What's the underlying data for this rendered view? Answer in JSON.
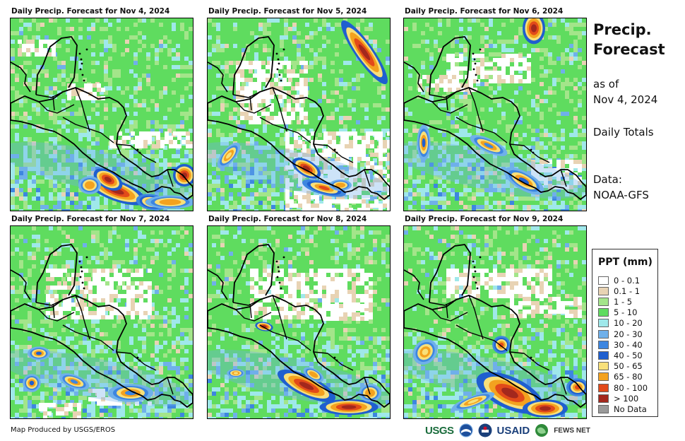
{
  "panels": [
    {
      "title": "Daily Precip. Forecast for Nov 4, 2024"
    },
    {
      "title": "Daily Precip. Forecast for Nov 5, 2024"
    },
    {
      "title": "Daily Precip. Forecast for Nov 6, 2024"
    },
    {
      "title": "Daily Precip. Forecast for Nov 7, 2024"
    },
    {
      "title": "Daily Precip. Forecast for Nov 8, 2024"
    },
    {
      "title": "Daily Precip. Forecast for Nov 9, 2024"
    }
  ],
  "side": {
    "title_line1": "Precip.",
    "title_line2": "Forecast",
    "asof_label": "as of",
    "asof_date": "Nov 4, 2024",
    "totals": "Daily Totals",
    "data_label": "Data:",
    "data_source": "NOAA-GFS"
  },
  "legend": {
    "title": "PPT (mm)",
    "items": [
      {
        "label": "0 - 0.1",
        "color": "#ffffff"
      },
      {
        "label": "0.1 - 1",
        "color": "#e8d3b4"
      },
      {
        "label": "1 - 5",
        "color": "#a3e58a"
      },
      {
        "label": "5 - 10",
        "color": "#5fdc5f"
      },
      {
        "label": "10 - 20",
        "color": "#9fe8ea"
      },
      {
        "label": "20 - 30",
        "color": "#6fb0ea"
      },
      {
        "label": "30 - 40",
        "color": "#3d86e0"
      },
      {
        "label": "40 - 50",
        "color": "#1f5fcf"
      },
      {
        "label": "50 - 65",
        "color": "#f8e07a"
      },
      {
        "label": "65 - 80",
        "color": "#f3a21f"
      },
      {
        "label": "80 - 100",
        "color": "#e24a1a"
      },
      {
        "label": "> 100",
        "color": "#a3281d"
      },
      {
        "label": "No Data",
        "color": "#9a9a9a"
      }
    ]
  },
  "footer": {
    "credit": "Map Produced by USGS/EROS"
  },
  "logos": {
    "usgs": "USGS",
    "usaid": "USAID",
    "fews": "FEWS NET"
  }
}
